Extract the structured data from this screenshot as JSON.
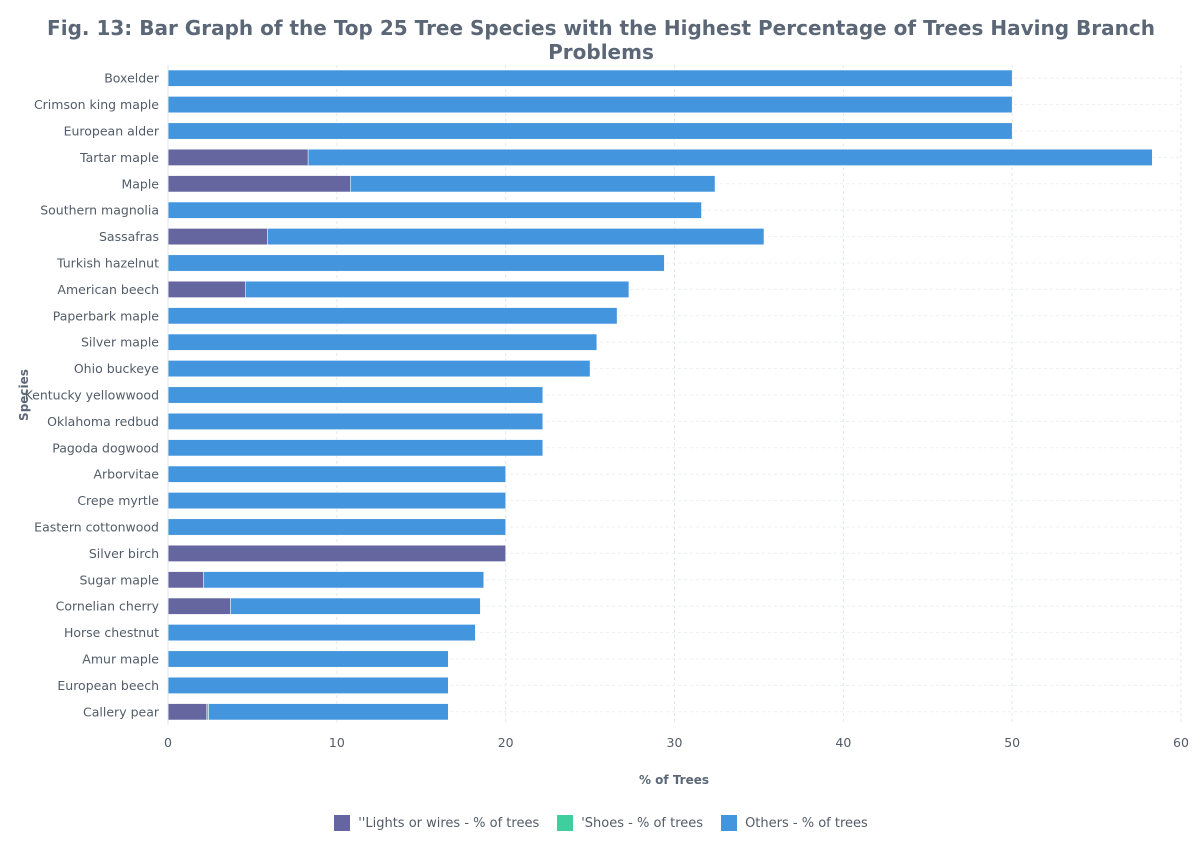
{
  "chart_data": {
    "type": "bar",
    "orientation": "horizontal",
    "stacked": true,
    "title": "Fig. 13: Bar Graph of the Top 25 Tree Species with the Highest Percentage of Trees Having Branch Problems",
    "xlabel": "% of Trees",
    "ylabel": "Species",
    "xlim": [
      0,
      60
    ],
    "xticks": [
      0,
      10,
      20,
      30,
      40,
      50,
      60
    ],
    "grid": true,
    "legend_position": "bottom-center",
    "categories": [
      "Boxelder",
      "Crimson king maple",
      "European alder",
      "Tartar maple",
      "Maple",
      "Southern magnolia",
      "Sassafras",
      "Turkish hazelnut",
      "American beech",
      "Paperbark maple",
      "Silver maple",
      "Ohio buckeye",
      "Kentucky yellowwood",
      "Oklahoma redbud",
      "Pagoda dogwood",
      "Arborvitae",
      "Crepe myrtle",
      "Eastern cottonwood",
      "Silver birch",
      "Sugar maple",
      "Cornelian cherry",
      "Horse chestnut",
      "Amur maple",
      "European beech",
      "Callery pear"
    ],
    "series": [
      {
        "name": "''Lights or wires  - % of trees",
        "color": "#6566a0",
        "values": [
          0,
          0,
          0,
          8.3,
          10.8,
          0,
          5.9,
          0,
          4.6,
          0,
          0,
          0,
          0,
          0,
          0,
          0,
          0,
          0,
          20.0,
          2.1,
          3.7,
          0,
          0,
          0,
          2.3
        ]
      },
      {
        "name": "'Shoes - % of trees",
        "color": "#3fcf9f",
        "values": [
          0,
          0,
          0,
          0,
          0,
          0,
          0,
          0,
          0,
          0,
          0,
          0,
          0,
          0,
          0,
          0,
          0,
          0,
          0,
          0,
          0,
          0,
          0,
          0,
          0.1
        ]
      },
      {
        "name": "Others - % of trees",
        "color": "#4396dd",
        "values": [
          50.0,
          50.0,
          50.0,
          50.0,
          21.6,
          31.6,
          29.4,
          29.4,
          22.7,
          26.6,
          25.4,
          25.0,
          22.2,
          22.2,
          22.2,
          20.0,
          20.0,
          20.0,
          0,
          16.6,
          14.8,
          18.2,
          16.6,
          16.6,
          14.2
        ]
      }
    ]
  }
}
